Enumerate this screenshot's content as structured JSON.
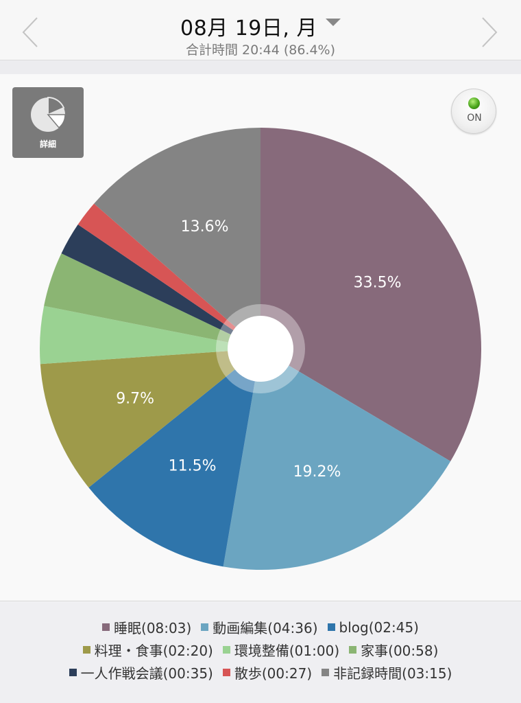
{
  "header": {
    "date": "08月 19日, 月",
    "total": "合計時間 20:44 (86.4%)"
  },
  "icons": {
    "prev": "chevron-left-icon",
    "next": "chevron-right-icon",
    "dropdown": "triangle-down-icon",
    "detail": "pie-chart-icon"
  },
  "controls": {
    "detail_label": "詳細",
    "toggle_label": "ON"
  },
  "chart_data": {
    "type": "pie",
    "title": "",
    "slices": [
      {
        "name": "睡眠",
        "time": "08:03",
        "percent": 33.5,
        "label": "33.5%",
        "color": "#876a7b"
      },
      {
        "name": "動画編集",
        "time": "04:36",
        "percent": 19.2,
        "label": "19.2%",
        "color": "#6ba5c1"
      },
      {
        "name": "blog",
        "time": "02:45",
        "percent": 11.5,
        "label": "11.5%",
        "color": "#2f75ab"
      },
      {
        "name": "料理・食事",
        "time": "02:20",
        "percent": 9.7,
        "label": "9.7%",
        "color": "#9e9a4a"
      },
      {
        "name": "環境整備",
        "time": "01:00",
        "percent": 4.2,
        "label": "",
        "color": "#9ad292"
      },
      {
        "name": "家事",
        "time": "00:58",
        "percent": 4.0,
        "label": "",
        "color": "#8bb573"
      },
      {
        "name": "一人作戦会議",
        "time": "00:35",
        "percent": 2.4,
        "label": "",
        "color": "#2c3e5a"
      },
      {
        "name": "散歩",
        "time": "00:27",
        "percent": 1.9,
        "label": "",
        "color": "#d75555"
      },
      {
        "name": "非記録時間",
        "time": "03:15",
        "percent": 13.6,
        "label": "13.6%",
        "color": "#848484"
      }
    ]
  }
}
